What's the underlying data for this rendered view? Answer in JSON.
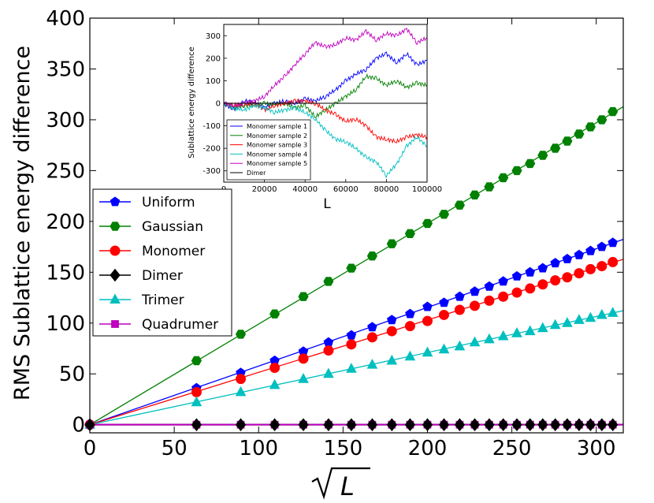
{
  "chart_data": [
    {
      "type": "line",
      "role": "main",
      "title": "",
      "xlabel": "√L",
      "ylabel": "RMS Sublattice energy difference",
      "xlim": [
        0,
        316
      ],
      "ylim": [
        -8,
        400
      ],
      "xticks": [
        0,
        50,
        100,
        150,
        200,
        250,
        300
      ],
      "yticks": [
        0,
        50,
        100,
        150,
        200,
        250,
        300,
        350,
        400
      ],
      "legend_position": "center-left",
      "x": [
        0,
        63.2,
        89.4,
        109.5,
        126.5,
        141.4,
        154.9,
        167.3,
        178.9,
        189.7,
        200.0,
        209.8,
        219.1,
        228.0,
        236.6,
        244.9,
        253.0,
        260.8,
        268.3,
        275.7,
        282.8,
        289.8,
        296.6,
        303.3,
        309.8
      ],
      "fit_x": [
        0,
        316
      ],
      "series": [
        {
          "name": "Uniform",
          "color": "#0000ff",
          "marker": "pentagon",
          "slope": 0.577,
          "values": [
            0,
            36,
            51,
            63,
            72,
            81,
            88,
            96,
            103,
            109,
            116,
            120,
            126,
            131,
            136,
            141,
            146,
            150,
            154,
            159,
            163,
            167,
            171,
            175,
            179
          ]
        },
        {
          "name": "Gaussian",
          "color": "#008000",
          "marker": "hexagon",
          "slope": 0.99,
          "values": [
            0,
            63,
            89,
            109,
            126,
            141,
            154,
            166,
            178,
            188,
            198,
            207,
            216,
            226,
            234,
            243,
            250,
            257,
            265,
            272,
            279,
            286,
            293,
            300,
            308
          ]
        },
        {
          "name": "Monomer",
          "color": "#ff0000",
          "marker": "circle",
          "slope": 0.515,
          "values": [
            0,
            32,
            45,
            56,
            65,
            73,
            79,
            86,
            92,
            97,
            102,
            108,
            113,
            117,
            122,
            126,
            130,
            134,
            138,
            142,
            145,
            149,
            153,
            156,
            160
          ]
        },
        {
          "name": "Dimer",
          "color": "#000000",
          "marker": "diamond",
          "slope": 0,
          "values": [
            0,
            0,
            0,
            0,
            0,
            0,
            0,
            0,
            0,
            0,
            0,
            0,
            0,
            0,
            0,
            0,
            0,
            0,
            0,
            0,
            0,
            0,
            0,
            0,
            0
          ]
        },
        {
          "name": "Trimer",
          "color": "#00bfbf",
          "marker": "triangle",
          "slope": 0.355,
          "values": [
            0,
            22,
            32,
            39,
            45,
            50,
            55,
            59,
            63,
            67,
            71,
            74,
            77,
            81,
            84,
            87,
            90,
            92,
            95,
            98,
            100,
            103,
            105,
            108,
            110
          ]
        },
        {
          "name": "Quadrumer",
          "color": "#bf00bf",
          "marker": "square",
          "slope": 0,
          "values": [
            0,
            0,
            0,
            0,
            0,
            0,
            0,
            0,
            0,
            0,
            0,
            0,
            0,
            0,
            0,
            0,
            0,
            0,
            0,
            0,
            0,
            0,
            0,
            0,
            0
          ]
        }
      ]
    },
    {
      "type": "line",
      "role": "inset",
      "title": "",
      "xlabel": "L",
      "ylabel": "Sublattice energy difference",
      "xlim": [
        0,
        100000
      ],
      "ylim": [
        -350,
        350
      ],
      "xticks": [
        0,
        20000,
        40000,
        60000,
        80000,
        100000
      ],
      "yticks": [
        -300,
        -200,
        -100,
        0,
        100,
        200,
        300
      ],
      "legend_position": "lower-left",
      "x": [
        0,
        5000,
        10000,
        15000,
        20000,
        25000,
        30000,
        35000,
        40000,
        45000,
        50000,
        55000,
        60000,
        65000,
        70000,
        75000,
        80000,
        85000,
        90000,
        95000,
        100000
      ],
      "series": [
        {
          "name": "Monomer sample 1",
          "color": "#0000ff",
          "values": [
            0,
            -30,
            10,
            5,
            -20,
            0,
            10,
            0,
            20,
            10,
            30,
            60,
            100,
            130,
            150,
            200,
            220,
            180,
            220,
            170,
            190
          ]
        },
        {
          "name": "Monomer sample 2",
          "color": "#008000",
          "values": [
            0,
            -20,
            -10,
            -10,
            0,
            -5,
            0,
            -20,
            -10,
            -60,
            -30,
            0,
            30,
            60,
            120,
            110,
            80,
            100,
            70,
            90,
            80
          ]
        },
        {
          "name": "Monomer sample 3",
          "color": "#ff0000",
          "values": [
            0,
            -10,
            -5,
            0,
            -30,
            -10,
            0,
            10,
            10,
            0,
            -30,
            -50,
            -80,
            -70,
            -100,
            -150,
            -160,
            -170,
            -150,
            -140,
            -150
          ]
        },
        {
          "name": "Monomer sample 4",
          "color": "#00bfbf",
          "values": [
            0,
            -20,
            -30,
            -10,
            -20,
            -40,
            -30,
            -20,
            -40,
            -70,
            -120,
            -160,
            -170,
            -200,
            -240,
            -260,
            -320,
            -270,
            -190,
            -150,
            -190
          ]
        },
        {
          "name": "Monomer sample 5",
          "color": "#bf00bf",
          "values": [
            0,
            -10,
            0,
            10,
            30,
            80,
            120,
            170,
            220,
            270,
            250,
            260,
            290,
            280,
            320,
            280,
            310,
            300,
            330,
            270,
            290
          ]
        },
        {
          "name": "Dimer",
          "color": "#000000",
          "values": [
            0,
            0,
            0,
            0,
            0,
            0,
            0,
            0,
            0,
            0,
            0,
            0,
            0,
            0,
            0,
            0,
            0,
            0,
            0,
            0,
            0
          ]
        }
      ]
    }
  ]
}
